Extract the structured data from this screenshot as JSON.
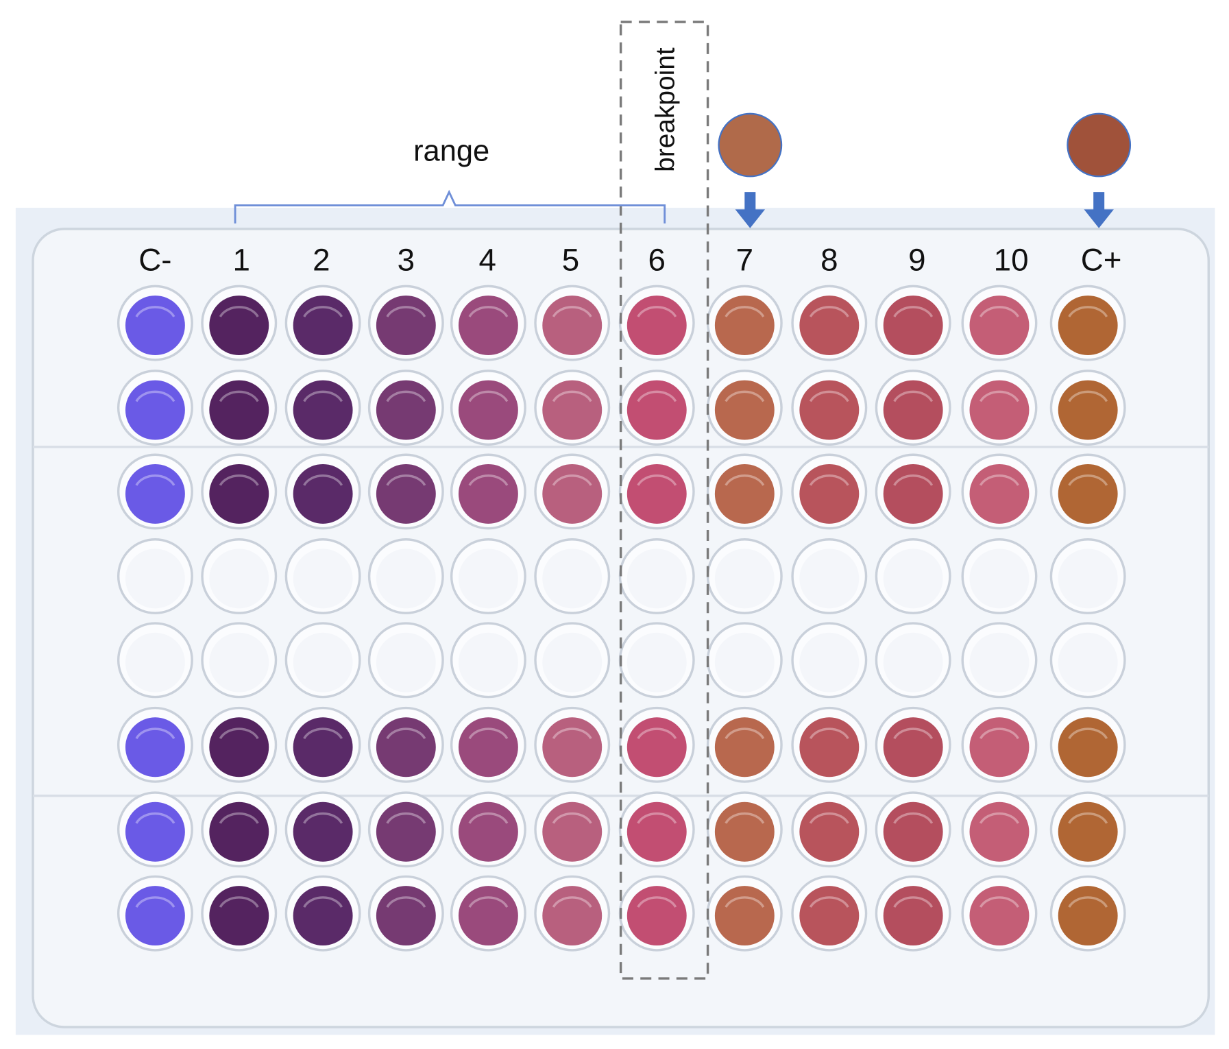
{
  "annotations": {
    "range_label": "range",
    "breakpoint_label": "breakpoint",
    "bracket_color": "#6f8fd8",
    "arrow_color": "#4472c4",
    "reference_circles": [
      {
        "column": "7",
        "color": "#b06a4a"
      },
      {
        "column": "C+",
        "color": "#a0523a"
      }
    ]
  },
  "plate": {
    "columns": [
      "C-",
      "1",
      "2",
      "3",
      "4",
      "5",
      "6",
      "7",
      "8",
      "9",
      "10",
      "C+"
    ],
    "column_colors": [
      "#6a5ae6",
      "#54235f",
      "#5a2a68",
      "#763a72",
      "#9a4a7c",
      "#b8607e",
      "#c24e72",
      "#b8684e",
      "#b8545c",
      "#b44e5e",
      "#c45e76",
      "#b06634"
    ],
    "rows_filled": [
      true,
      true,
      true,
      false,
      false,
      true,
      true,
      true
    ],
    "empty_well_color": "#f4f6fa",
    "background_color": "#e8eef6"
  }
}
